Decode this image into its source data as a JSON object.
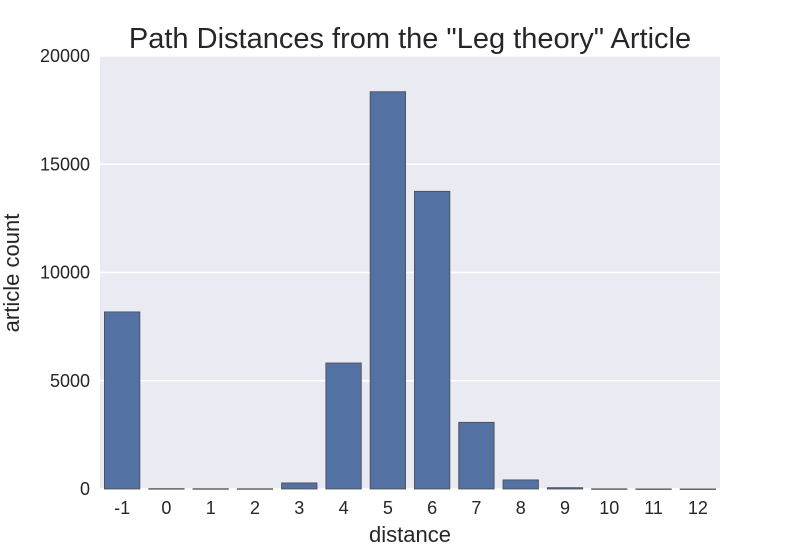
{
  "chart_data": {
    "type": "bar",
    "title": "Path Distances from the \"Leg theory\" Article",
    "xlabel": "distance",
    "ylabel": "article count",
    "categories": [
      "-1",
      "0",
      "1",
      "2",
      "3",
      "4",
      "5",
      "6",
      "7",
      "8",
      "9",
      "10",
      "11",
      "12"
    ],
    "values": [
      8180,
      15,
      12,
      10,
      280,
      5820,
      18350,
      13750,
      3080,
      420,
      60,
      8,
      4,
      2
    ],
    "ylim": [
      0,
      20000
    ],
    "yticks": [
      0,
      5000,
      10000,
      15000,
      20000
    ],
    "ytick_labels": [
      "0",
      "5000",
      "10000",
      "15000",
      "20000"
    ],
    "grid": true,
    "style": {
      "background": "#eaeaf2",
      "grid_color": "#ffffff",
      "bar_color": "#5471a4",
      "bar_edge": "#4a4a4a"
    }
  }
}
